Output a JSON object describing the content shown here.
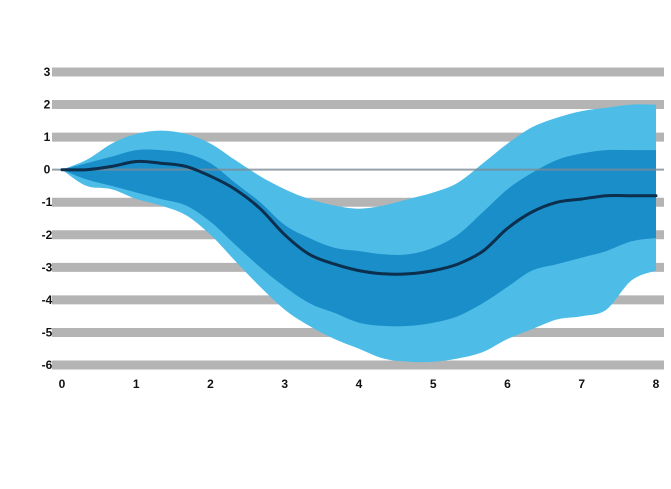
{
  "chart_data": {
    "type": "area",
    "title": "",
    "subtitle": "",
    "xlabel": "",
    "ylabel": "",
    "caption": "",
    "grid": true,
    "xlim": [
      0,
      8
    ],
    "ylim": [
      -6,
      3
    ],
    "x_ticks": [
      0,
      1,
      2,
      3,
      4,
      5,
      6,
      7,
      8
    ],
    "y_ticks": [
      3,
      2,
      1,
      0,
      -1,
      -2,
      -3,
      -4,
      -5,
      -6
    ],
    "x": [
      0,
      0.33,
      0.67,
      1.0,
      1.33,
      1.67,
      2.0,
      2.33,
      2.67,
      3.0,
      3.33,
      3.67,
      4.0,
      4.33,
      4.67,
      5.0,
      5.33,
      5.67,
      6.0,
      6.33,
      6.67,
      7.0,
      7.33,
      7.67,
      8.0
    ],
    "colors": {
      "outer_band": "#4dbde8",
      "inner_band": "#1a8ec9",
      "median": "#0b2f4d",
      "grid": "#b4b4b4",
      "zero_line": "#7a8a96"
    },
    "series": [
      {
        "role": "outer_lower",
        "values": [
          0.0,
          -0.5,
          -0.6,
          -0.9,
          -1.1,
          -1.4,
          -2.0,
          -2.8,
          -3.6,
          -4.3,
          -4.8,
          -5.2,
          -5.5,
          -5.8,
          -5.9,
          -5.9,
          -5.8,
          -5.6,
          -5.2,
          -4.9,
          -4.6,
          -4.5,
          -4.3,
          -3.4,
          -3.1
        ]
      },
      {
        "role": "inner_lower",
        "values": [
          0.0,
          -0.3,
          -0.5,
          -0.7,
          -0.9,
          -1.1,
          -1.6,
          -2.3,
          -3.0,
          -3.6,
          -4.1,
          -4.4,
          -4.7,
          -4.8,
          -4.8,
          -4.7,
          -4.5,
          -4.1,
          -3.6,
          -3.1,
          -2.9,
          -2.7,
          -2.5,
          -2.2,
          -2.1
        ]
      },
      {
        "role": "median",
        "values": [
          0.0,
          0.0,
          0.1,
          0.25,
          0.2,
          0.1,
          -0.2,
          -0.6,
          -1.2,
          -2.0,
          -2.6,
          -2.9,
          -3.1,
          -3.2,
          -3.2,
          -3.1,
          -2.9,
          -2.5,
          -1.8,
          -1.3,
          -1.0,
          -0.9,
          -0.8,
          -0.8,
          -0.8
        ]
      },
      {
        "role": "inner_upper",
        "values": [
          0.0,
          0.2,
          0.4,
          0.6,
          0.6,
          0.5,
          0.2,
          -0.4,
          -1.0,
          -1.7,
          -2.1,
          -2.4,
          -2.5,
          -2.6,
          -2.6,
          -2.4,
          -2.0,
          -1.3,
          -0.6,
          -0.1,
          0.3,
          0.5,
          0.6,
          0.6,
          0.6
        ]
      },
      {
        "role": "outer_upper",
        "values": [
          0.0,
          0.3,
          0.8,
          1.1,
          1.2,
          1.1,
          0.8,
          0.3,
          -0.2,
          -0.6,
          -0.9,
          -1.1,
          -1.2,
          -1.1,
          -0.9,
          -0.7,
          -0.4,
          0.2,
          0.8,
          1.3,
          1.6,
          1.8,
          1.9,
          2.0,
          2.0
        ]
      }
    ]
  }
}
